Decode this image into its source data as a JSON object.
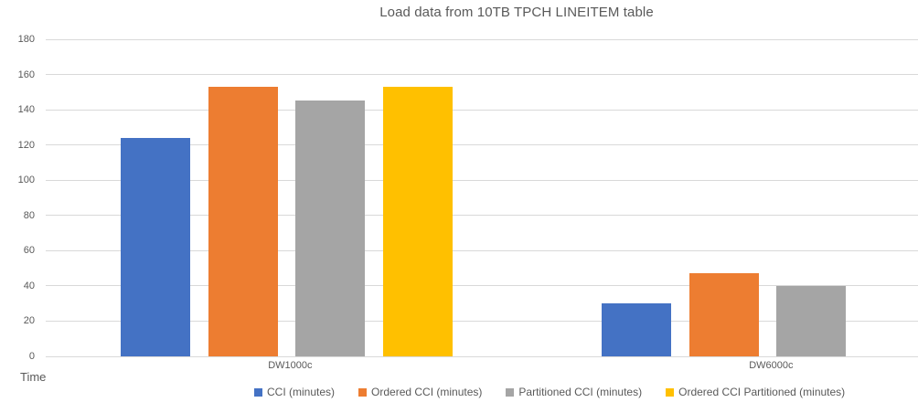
{
  "title": "Load data from 10TB TPCH LINEITEM table",
  "y_axis_title": "Time",
  "chart_data": {
    "type": "bar",
    "title": "Load data from 10TB TPCH LINEITEM table",
    "categories": [
      "DW1000c",
      "DW6000c"
    ],
    "series": [
      {
        "name": "CCI (minutes)",
        "color": "#4472C4",
        "values": [
          124,
          30
        ]
      },
      {
        "name": "Ordered CCI (minutes)",
        "color": "#ED7D31",
        "values": [
          153,
          47
        ]
      },
      {
        "name": "Partitioned CCI (minutes)",
        "color": "#A5A5A5",
        "values": [
          145,
          40
        ]
      },
      {
        "name": "Ordered CCI Partitioned (minutes)",
        "color": "#FFC000",
        "values": [
          153,
          0
        ]
      }
    ],
    "xlabel": "",
    "ylabel": "Time",
    "ylim": [
      0,
      180
    ],
    "yticks": [
      0,
      20,
      40,
      60,
      80,
      100,
      120,
      140,
      160,
      180
    ],
    "grid": true,
    "legend_position": "bottom",
    "gridline_color": "#D9D9D9",
    "text_color": "#595959"
  }
}
